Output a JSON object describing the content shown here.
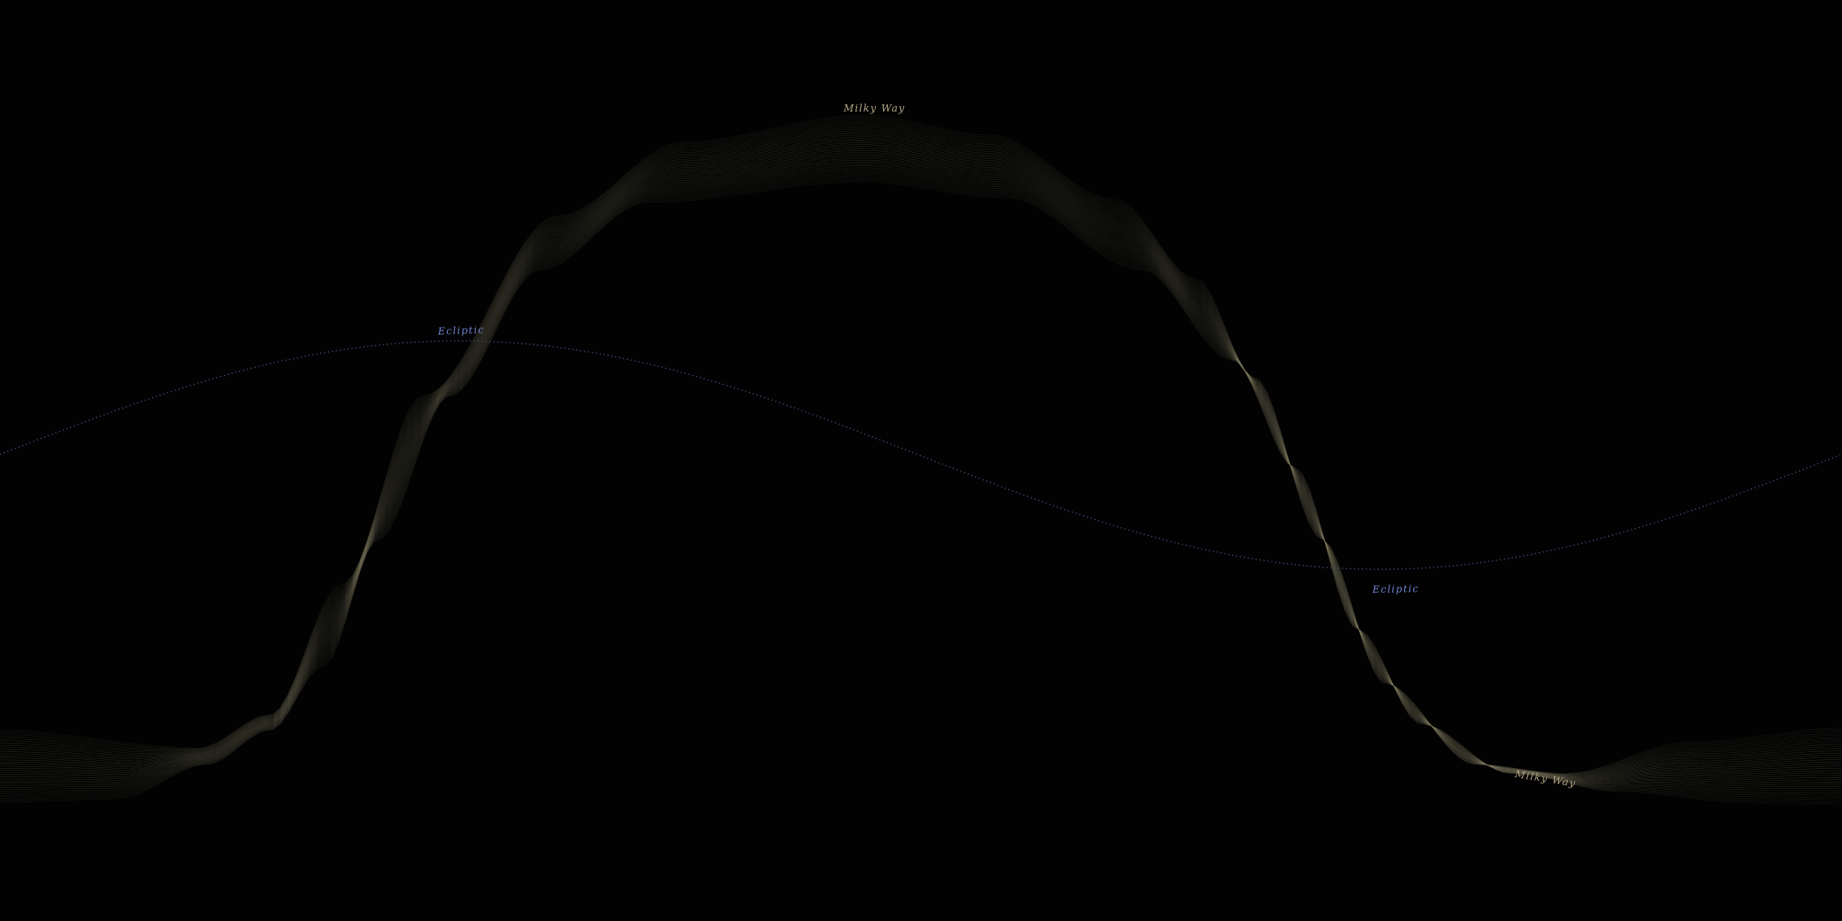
{
  "colors": {
    "background": "#020202",
    "milky_way_band": "#8a8468",
    "milky_way_label": "#b5a887",
    "ecliptic_line": "#3e4e7a",
    "ecliptic_label": "#6f86d6"
  },
  "milky_way": {
    "labels": [
      "Milky Way",
      "Milky Way"
    ]
  },
  "ecliptic": {
    "labels": [
      "Ecliptic",
      "Ecliptic"
    ]
  }
}
